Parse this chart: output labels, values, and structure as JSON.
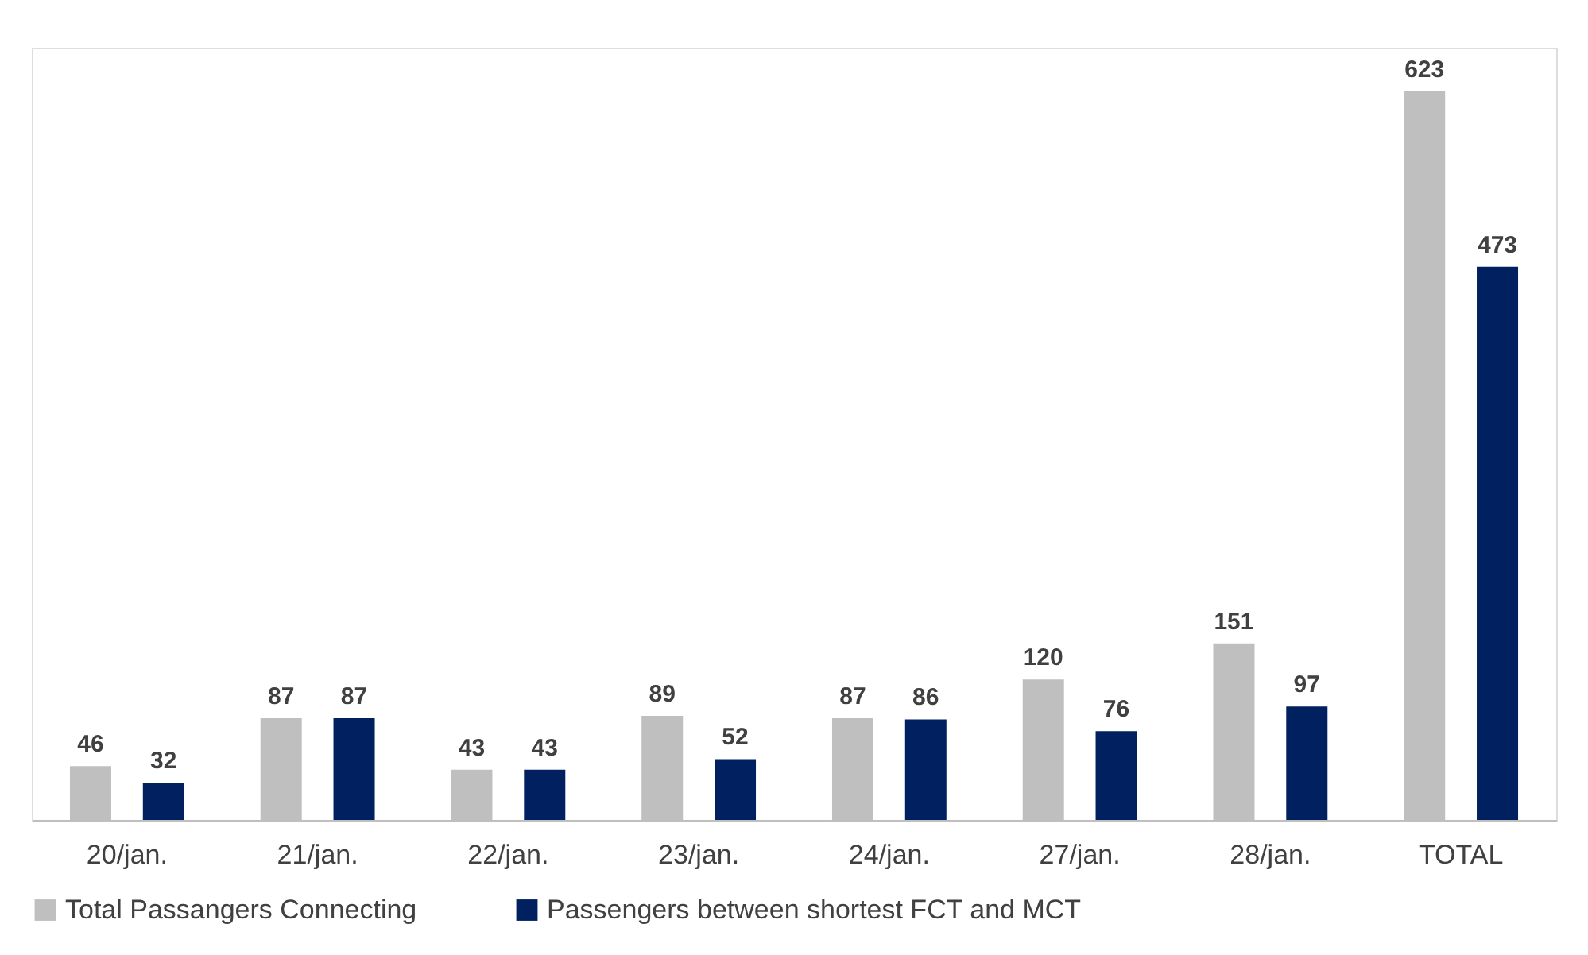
{
  "chart_data": {
    "type": "bar",
    "categories": [
      "20/jan.",
      "21/jan.",
      "22/jan.",
      "23/jan.",
      "24/jan.",
      "27/jan.",
      "28/jan.",
      "TOTAL"
    ],
    "series": [
      {
        "name": "Total Passangers Connecting",
        "color": "#bfbfbf",
        "values": [
          46,
          87,
          43,
          89,
          87,
          120,
          151,
          623
        ]
      },
      {
        "name": "Passengers between shortest FCT and MCT",
        "color": "#002060",
        "values": [
          32,
          87,
          43,
          52,
          86,
          76,
          97,
          473
        ]
      }
    ],
    "data_labels": true,
    "legend": "bottom",
    "grid": false
  }
}
